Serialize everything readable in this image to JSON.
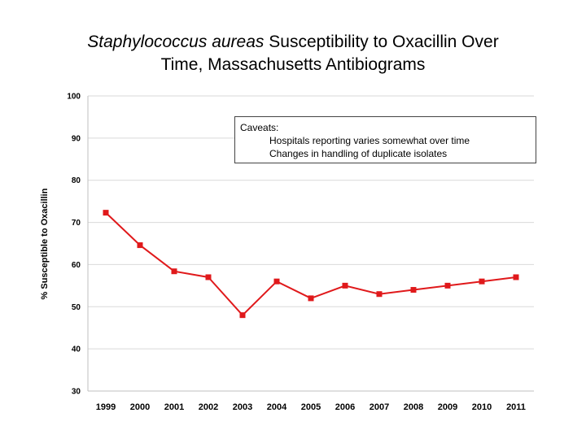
{
  "title": {
    "italic_part": "Staphylococcus aureas",
    "rest_line1": " Susceptibility to Oxacillin Over",
    "line2": "Time, Massachusetts Antibiograms"
  },
  "annotation": {
    "heading": "Caveats:",
    "items": [
      "Hospitals reporting varies somewhat over time",
      "Changes in handling of duplicate isolates"
    ]
  },
  "colors": {
    "series": "#e0191b",
    "grid": "#d9d9d9",
    "axis": "#bfbfbf"
  },
  "chart_data": {
    "type": "line",
    "title": "Staphylococcus aureas Susceptibility to Oxacillin Over Time, Massachusetts Antibiograms",
    "xlabel": "",
    "ylabel": "% Susceptible to Oxacillin",
    "x": [
      "1999",
      "2000",
      "2001",
      "2002",
      "2003",
      "2004",
      "2005",
      "2006",
      "2007",
      "2008",
      "2009",
      "2010",
      "2011"
    ],
    "series": [
      {
        "values": [
          72.3,
          64.6,
          58.4,
          57.0,
          48.0,
          56.0,
          52.0,
          55.0,
          53.0,
          54.0,
          55.0,
          56.0,
          57.0
        ]
      }
    ],
    "ylim": [
      30,
      100
    ],
    "yticks": [
      30,
      40,
      50,
      60,
      70,
      80,
      90,
      100
    ],
    "grid": true,
    "legend": "none",
    "marker": "square"
  }
}
